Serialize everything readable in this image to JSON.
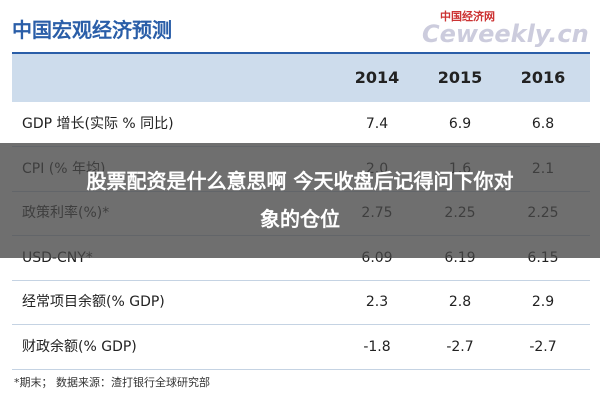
{
  "header": {
    "title": "中国宏观经济预测",
    "watermark_top": "中国经济网",
    "watermark": "Ceweekly.cn"
  },
  "table": {
    "columns": [
      "2014",
      "2015",
      "2016"
    ],
    "rows": [
      [
        "GDP 增长(实际 % 同比)",
        "7.4",
        "6.9",
        "6.8"
      ],
      [
        "CPI (% 年均)",
        "2.0",
        "1.6",
        "2.1"
      ],
      [
        "政策利率(%)*",
        "2.75",
        "2.25",
        "2.25"
      ],
      [
        "USD-CNY*",
        "6.09",
        "6.19",
        "6.15"
      ],
      [
        "经常项目余额(% GDP)",
        "2.3",
        "2.8",
        "2.9"
      ],
      [
        "财政余额(% GDP)",
        "-1.8",
        "-2.7",
        "-2.7"
      ]
    ]
  },
  "footnote": "*期末；  数据来源：渣打银行全球研究部",
  "banner": {
    "lines": [
      "股票配资是什么意思啊 今天收盘后记得问下你对",
      "象的仓位"
    ]
  }
}
